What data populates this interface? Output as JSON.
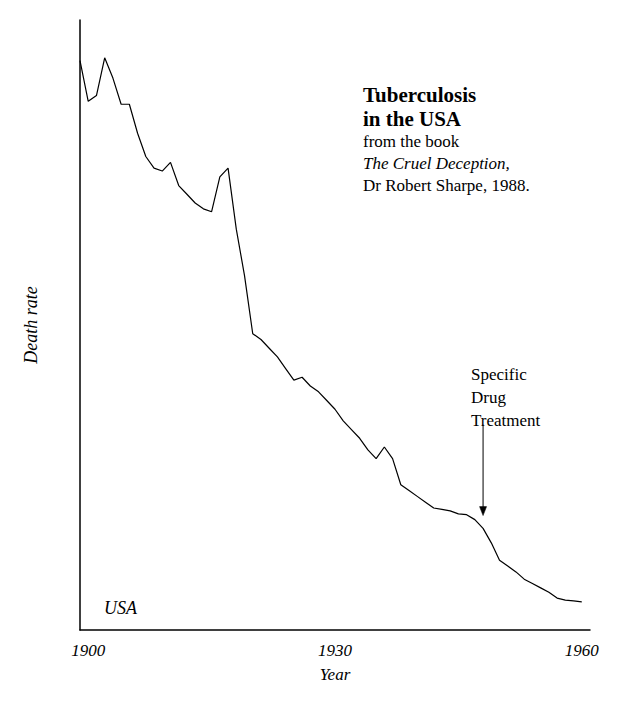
{
  "chart_data": {
    "type": "line",
    "title": [
      "Tuberculosis",
      "in the USA"
    ],
    "subtitle": [
      "from the book",
      "The Cruel Deception,",
      "Dr Robert Sharpe, 1988."
    ],
    "x_label": "Year",
    "y_label": "Death rate",
    "x": [
      1899,
      1900,
      1901,
      1902,
      1903,
      1904,
      1905,
      1906,
      1907,
      1908,
      1909,
      1910,
      1911,
      1912,
      1913,
      1914,
      1915,
      1916,
      1917,
      1918,
      1919,
      1920,
      1921,
      1922,
      1923,
      1924,
      1925,
      1926,
      1927,
      1928,
      1929,
      1930,
      1931,
      1932,
      1933,
      1934,
      1935,
      1936,
      1937,
      1938,
      1939,
      1940,
      1941,
      1942,
      1943,
      1944,
      1945,
      1946,
      1947,
      1948,
      1949,
      1950,
      1951,
      1952,
      1953,
      1954,
      1955,
      1956,
      1957,
      1958,
      1959,
      1960
    ],
    "values": [
      196,
      182,
      184,
      197,
      190,
      181,
      181,
      171,
      163,
      159,
      158,
      161,
      153,
      150,
      147,
      145,
      144,
      156,
      159,
      138,
      122,
      102,
      100,
      97,
      94,
      90,
      86,
      87,
      84,
      82,
      79,
      76,
      72,
      69,
      66,
      62,
      59,
      63,
      59,
      50,
      48,
      46,
      44,
      42,
      41.5,
      41,
      40,
      39.7,
      38,
      35,
      30,
      24,
      22,
      20,
      17.5,
      16,
      14.5,
      13,
      11,
      10.3,
      10,
      9.7
    ],
    "color": "#000000",
    "xlim": [
      1899,
      1961
    ],
    "xticks": [
      1900,
      1930,
      1960
    ],
    "ylim": [
      0,
      210
    ],
    "yticks": [],
    "tick_labels": "x",
    "grid": false,
    "annotations": [
      {
        "text": "USA"
      },
      {
        "text": "Specific Drug Treatment",
        "x": 1948,
        "y": 38
      }
    ]
  }
}
